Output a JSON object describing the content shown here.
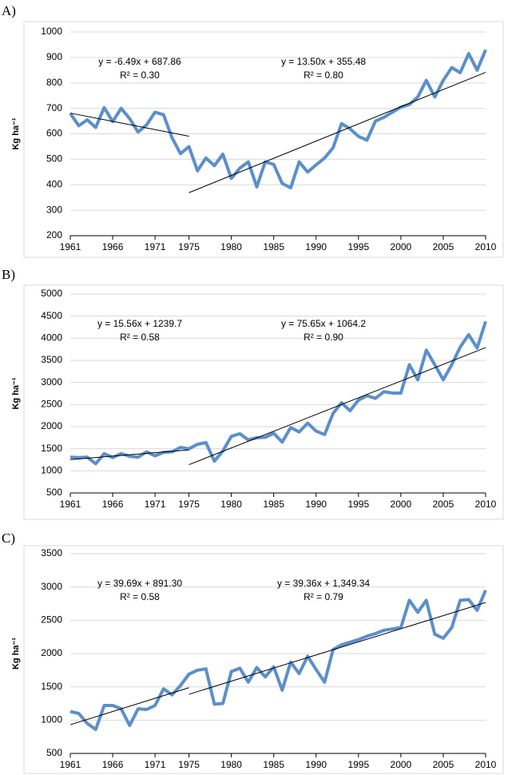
{
  "chart_data": [
    {
      "type": "line",
      "panel_label": "A)",
      "ylabel": "Kg ha⁻¹",
      "color": "#5b8fcb",
      "x": [
        1961,
        1962,
        1963,
        1964,
        1965,
        1966,
        1967,
        1968,
        1969,
        1970,
        1971,
        1972,
        1973,
        1974,
        1975,
        1976,
        1977,
        1978,
        1979,
        1980,
        1981,
        1982,
        1983,
        1984,
        1985,
        1986,
        1987,
        1988,
        1989,
        1990,
        1991,
        1992,
        1993,
        1994,
        1995,
        1996,
        1997,
        1998,
        1999,
        2000,
        2001,
        2002,
        2003,
        2004,
        2005,
        2006,
        2007,
        2008,
        2009,
        2010
      ],
      "values": [
        680,
        632,
        655,
        625,
        703,
        648,
        700,
        660,
        607,
        635,
        685,
        675,
        585,
        522,
        550,
        455,
        505,
        475,
        520,
        425,
        465,
        490,
        392,
        490,
        480,
        405,
        388,
        490,
        450,
        478,
        505,
        545,
        640,
        620,
        590,
        575,
        650,
        665,
        685,
        705,
        715,
        745,
        810,
        745,
        810,
        860,
        840,
        915,
        850,
        930
      ],
      "xlim": [
        1961,
        2010
      ],
      "xticks": [
        1961,
        1966,
        1971,
        1975,
        1980,
        1985,
        1990,
        1995,
        2000,
        2005,
        2010
      ],
      "ylim": [
        200,
        1000
      ],
      "yticks": [
        200,
        300,
        400,
        500,
        600,
        700,
        800,
        900,
        1000
      ],
      "grid": true,
      "trendlines": [
        {
          "equation": "y = -6.49x + 687.86",
          "r_squared": "R² = 0.30",
          "slope": -6.49,
          "intercept": 687.86,
          "x_start": 1961,
          "x_end": 1975
        },
        {
          "equation": "y = 13.50x + 355.48",
          "r_squared": "R² = 0.80",
          "slope": 13.5,
          "intercept": 355.48,
          "x_start": 1975,
          "x_end": 2010
        }
      ]
    },
    {
      "type": "line",
      "panel_label": "B)",
      "ylabel": "Kg ha⁻¹",
      "color": "#5b8fcb",
      "x": [
        1961,
        1962,
        1963,
        1964,
        1965,
        1966,
        1967,
        1968,
        1969,
        1970,
        1971,
        1972,
        1973,
        1974,
        1975,
        1976,
        1977,
        1978,
        1979,
        1980,
        1981,
        1982,
        1983,
        1984,
        1985,
        1986,
        1987,
        1988,
        1989,
        1990,
        1991,
        1992,
        1993,
        1994,
        1995,
        1996,
        1997,
        1998,
        1999,
        2000,
        2001,
        2002,
        2003,
        2004,
        2005,
        2006,
        2007,
        2008,
        2009,
        2010
      ],
      "values": [
        1310,
        1300,
        1310,
        1160,
        1390,
        1300,
        1390,
        1330,
        1310,
        1430,
        1340,
        1420,
        1430,
        1530,
        1500,
        1600,
        1640,
        1220,
        1450,
        1780,
        1840,
        1700,
        1750,
        1760,
        1850,
        1650,
        1980,
        1880,
        2080,
        1900,
        1820,
        2300,
        2540,
        2360,
        2600,
        2700,
        2640,
        2790,
        2760,
        2760,
        3400,
        3060,
        3730,
        3400,
        3060,
        3400,
        3800,
        4080,
        3780,
        4380
      ],
      "xlim": [
        1961,
        2010
      ],
      "xticks": [
        1961,
        1966,
        1971,
        1975,
        1980,
        1985,
        1990,
        1995,
        2000,
        2005,
        2010
      ],
      "ylim": [
        500,
        5000
      ],
      "yticks": [
        500,
        1000,
        1500,
        2000,
        2500,
        3000,
        3500,
        4000,
        4500,
        5000
      ],
      "grid": true,
      "trendlines": [
        {
          "equation": "y = 15.56x + 1239.7",
          "r_squared": "R² = 0.58",
          "slope": 15.56,
          "intercept": 1239.7,
          "x_start": 1961,
          "x_end": 1975
        },
        {
          "equation": "y = 75.65x + 1064.2",
          "r_squared": "R² = 0.90",
          "slope": 75.65,
          "intercept": 1064.2,
          "x_start": 1975,
          "x_end": 2010
        }
      ]
    },
    {
      "type": "line",
      "panel_label": "C)",
      "ylabel": "Kg ha⁻¹",
      "color": "#5b8fcb",
      "x": [
        1961,
        1962,
        1963,
        1964,
        1965,
        1966,
        1967,
        1968,
        1969,
        1970,
        1971,
        1972,
        1973,
        1974,
        1975,
        1976,
        1977,
        1978,
        1979,
        1980,
        1981,
        1982,
        1983,
        1984,
        1985,
        1986,
        1987,
        1988,
        1989,
        1990,
        1991,
        1992,
        1993,
        1994,
        1995,
        1996,
        1997,
        1998,
        1999,
        2000,
        2001,
        2002,
        2003,
        2004,
        2005,
        2006,
        2007,
        2008,
        2009,
        2010
      ],
      "values": [
        1130,
        1100,
        950,
        860,
        1220,
        1220,
        1170,
        920,
        1170,
        1160,
        1220,
        1470,
        1380,
        1520,
        1690,
        1750,
        1770,
        1240,
        1250,
        1730,
        1780,
        1570,
        1790,
        1650,
        1800,
        1450,
        1870,
        1700,
        1960,
        1760,
        1570,
        2060,
        2130,
        2170,
        2210,
        2260,
        2300,
        2350,
        2370,
        2390,
        2800,
        2620,
        2800,
        2290,
        2230,
        2390,
        2800,
        2810,
        2650,
        2950
      ],
      "xlim": [
        1961,
        2010
      ],
      "xticks": [
        1961,
        1966,
        1971,
        1975,
        1980,
        1985,
        1990,
        1995,
        2000,
        2005,
        2010
      ],
      "ylim": [
        500,
        3500
      ],
      "yticks": [
        500,
        1000,
        1500,
        2000,
        2500,
        3000,
        3500
      ],
      "grid": true,
      "trendlines": [
        {
          "equation": "y = 39.69x + 891.30",
          "r_squared": "R² = 0.58",
          "slope": 39.69,
          "intercept": 891.3,
          "x_start": 1961,
          "x_end": 1975
        },
        {
          "equation": "y = 39.36x + 1,349.34",
          "r_squared": "R² = 0.79",
          "slope": 39.36,
          "intercept": 1349.34,
          "x_start": 1975,
          "x_end": 2010
        }
      ]
    }
  ]
}
